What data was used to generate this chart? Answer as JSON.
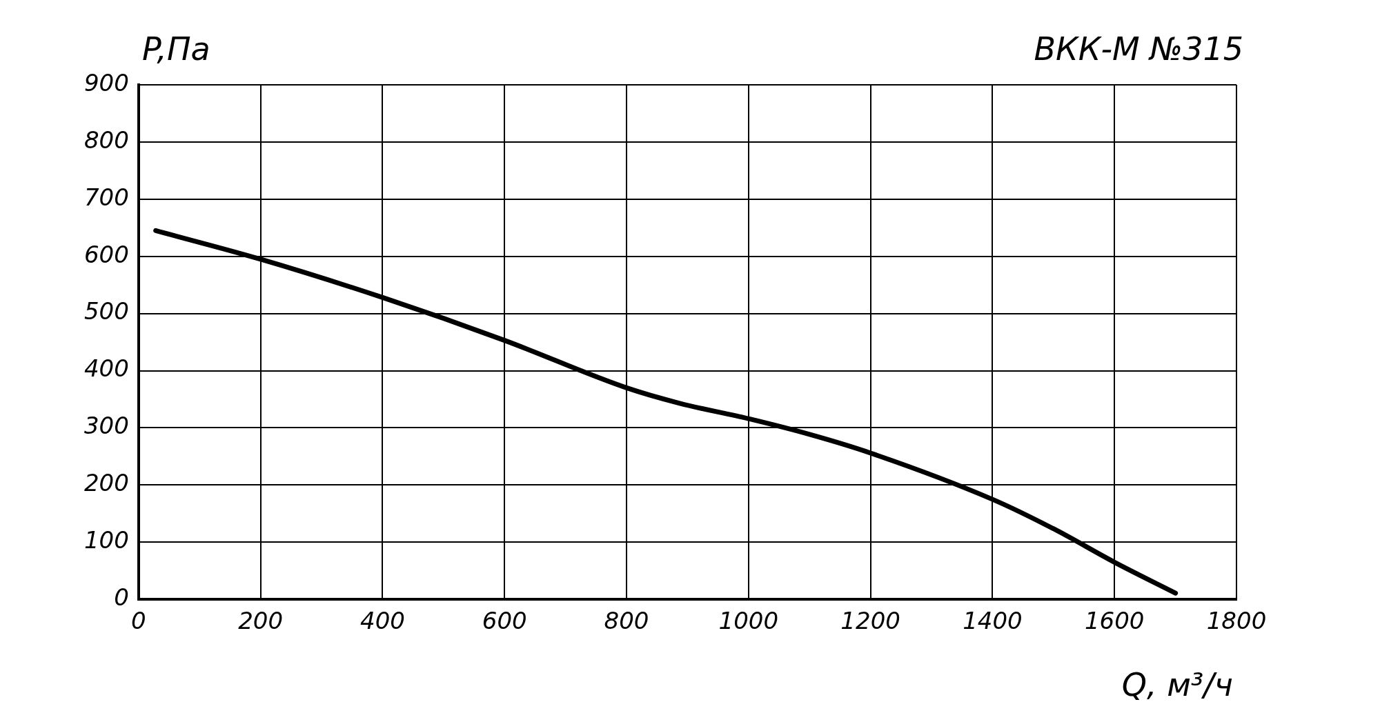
{
  "chart_data": {
    "type": "line",
    "title": "ВКК-М №315",
    "xlabel": "Q, м³/ч",
    "ylabel": "P,Па",
    "x": [
      28,
      200,
      400,
      600,
      800,
      887,
      1000,
      1102,
      1200,
      1400,
      1501,
      1600,
      1700
    ],
    "series": [
      {
        "color": "#000000",
        "values": [
          645,
          595,
          528,
          453,
          370,
          343,
          316,
          288,
          256,
          175,
          123,
          65,
          11
        ]
      }
    ],
    "xlim": [
      0,
      1800
    ],
    "xticks": [
      0,
      200,
      400,
      600,
      800,
      1000,
      1200,
      1400,
      1600,
      1800
    ],
    "ylim": [
      0,
      900
    ],
    "yticks": [
      0,
      100,
      200,
      300,
      400,
      500,
      600,
      700,
      800,
      900
    ],
    "grid": true,
    "legend": false,
    "marker": "none",
    "line_style": "solid"
  }
}
